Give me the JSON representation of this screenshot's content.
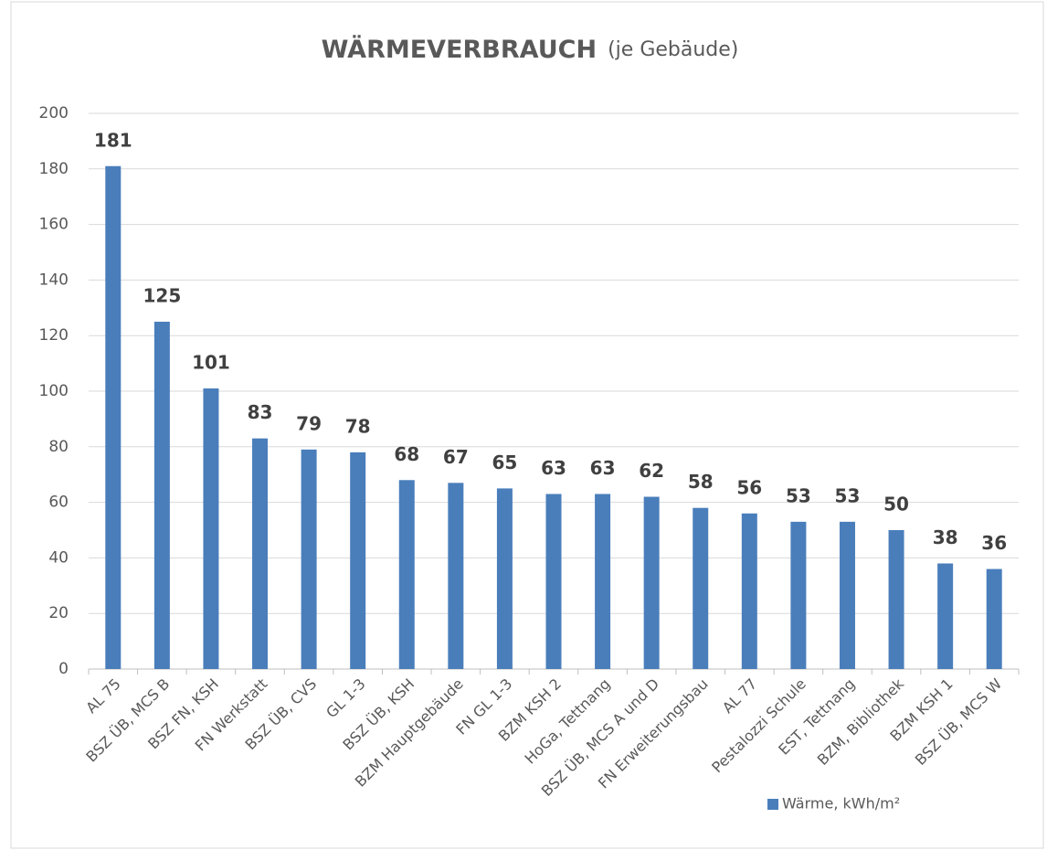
{
  "chart_data": {
    "type": "bar",
    "title": "WÄRMEVERBRAUCH",
    "subtitle": "(je Gebäude)",
    "categories": [
      "AL 75",
      "BSZ ÜB,  MCS B",
      "BSZ FN, KSH",
      "FN Werkstatt",
      "BSZ ÜB, CVS",
      "GL 1-3",
      "BSZ ÜB, KSH",
      "BZM Hauptgebäude",
      "FN GL 1-3",
      "BZM KSH 2",
      "HoGa, Tettnang",
      "BSZ ÜB, MCS A und D",
      "FN Erweiterungsbau",
      "AL 77",
      "Pestalozzi Schule",
      "EST, Tettnang",
      "BZM, Bibliothek",
      "BZM KSH 1",
      "BSZ ÜB, MCS W"
    ],
    "series": [
      {
        "name": "Wärme, kWh/m²",
        "color": "#4a7ebb",
        "values": [
          181,
          125,
          101,
          83,
          79,
          78,
          68,
          67,
          65,
          63,
          63,
          62,
          58,
          56,
          53,
          53,
          50,
          38,
          36
        ]
      }
    ],
    "ylim": [
      0,
      200
    ],
    "yticks": [
      0,
      20,
      40,
      60,
      80,
      100,
      120,
      140,
      160,
      180,
      200
    ],
    "grid": true,
    "legend": "bottom-right"
  }
}
